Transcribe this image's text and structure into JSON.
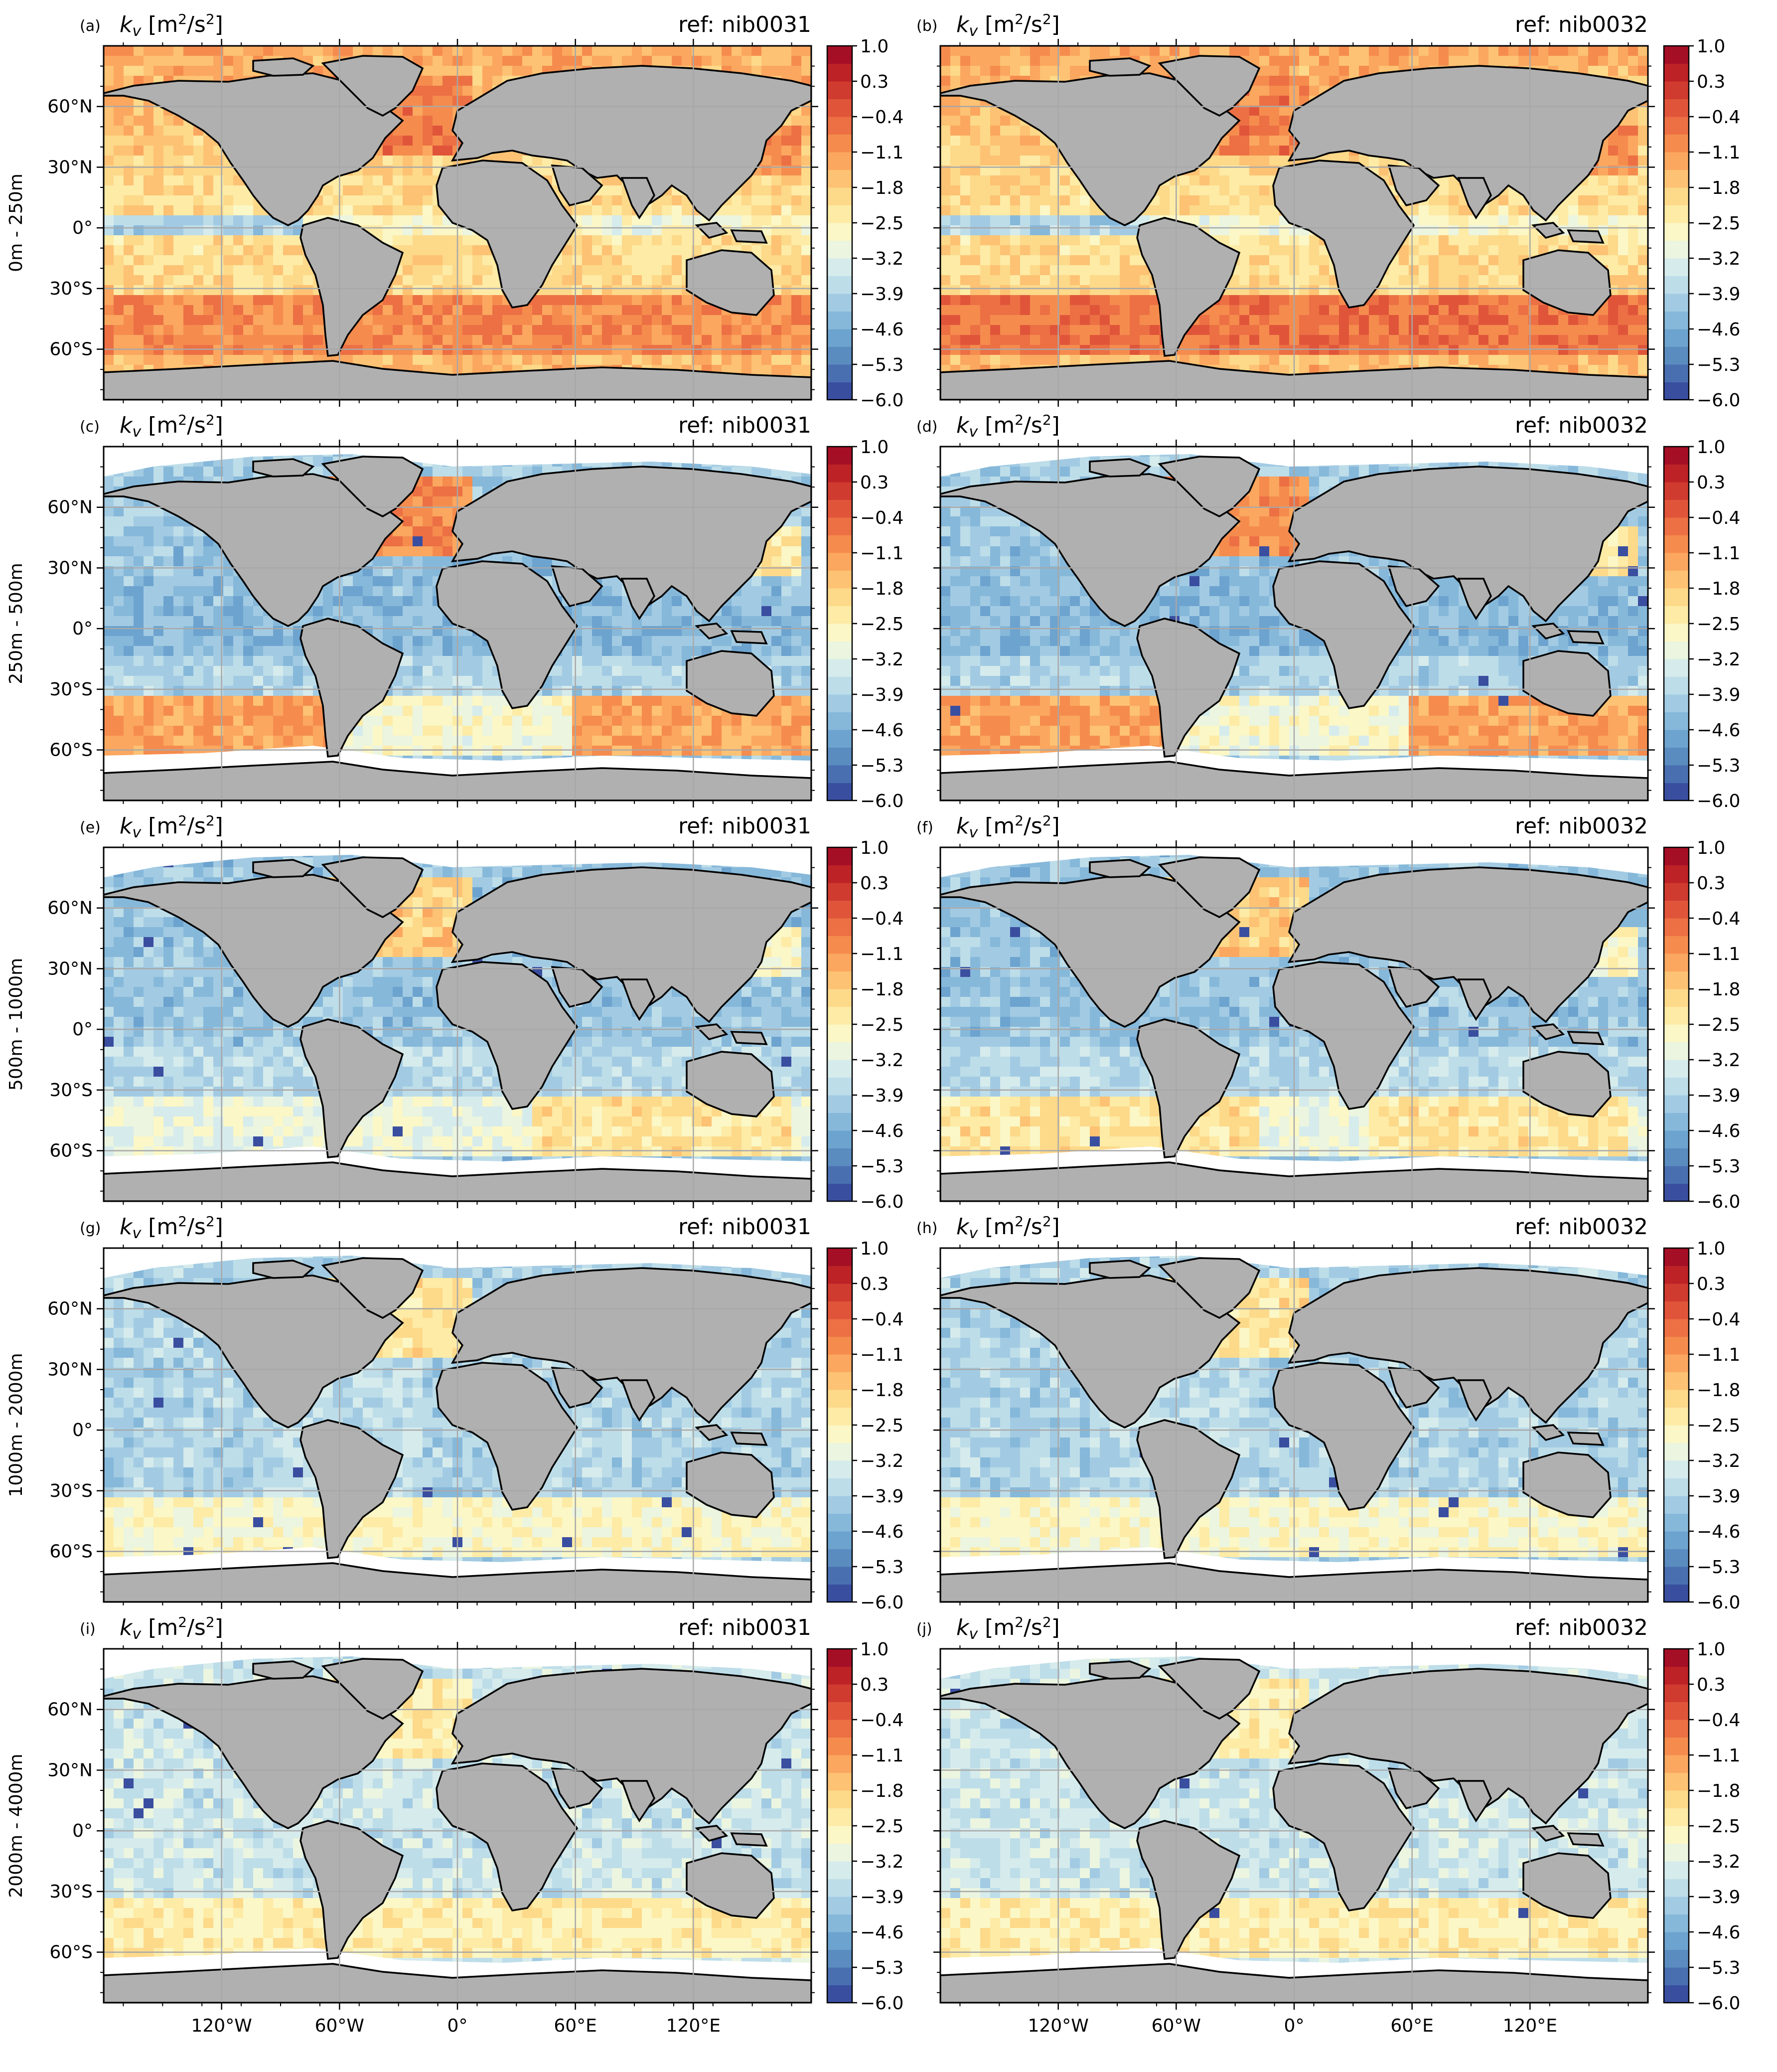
{
  "figure": {
    "panel_title": "k_v [m²/s²]",
    "colorbar": {
      "ticks": [
        "1.0",
        "0.3",
        "−0.4",
        "−1.1",
        "−1.8",
        "−2.5",
        "−3.2",
        "−3.9",
        "−4.6",
        "−5.3",
        "−6.0"
      ],
      "range": [
        -6.0,
        1.0
      ],
      "levels": 20,
      "colors": [
        "#3a4ea0",
        "#4a6fb0",
        "#5b8cc0",
        "#6da3cf",
        "#86b8da",
        "#a2cbe3",
        "#bddde9",
        "#d6ebec",
        "#ebf5e0",
        "#fbf7c6",
        "#fdeba6",
        "#fdd98a",
        "#fdc273",
        "#fba75f",
        "#f58c4e",
        "#ec7044",
        "#e0553a",
        "#cf3b2f",
        "#bc2226",
        "#a50f26"
      ]
    },
    "rows": [
      {
        "depth_label": "0m - 250m",
        "panels": [
          {
            "letter": "(a)",
            "ref": "ref: nib0031"
          },
          {
            "letter": "(b)",
            "ref": "ref: nib0032"
          }
        ]
      },
      {
        "depth_label": "250m - 500m",
        "panels": [
          {
            "letter": "(c)",
            "ref": "ref: nib0031"
          },
          {
            "letter": "(d)",
            "ref": "ref: nib0032"
          }
        ]
      },
      {
        "depth_label": "500m - 1000m",
        "panels": [
          {
            "letter": "(e)",
            "ref": "ref: nib0031"
          },
          {
            "letter": "(f)",
            "ref": "ref: nib0032"
          }
        ]
      },
      {
        "depth_label": "1000m - 2000m",
        "panels": [
          {
            "letter": "(g)",
            "ref": "ref: nib0031"
          },
          {
            "letter": "(h)",
            "ref": "ref: nib0032"
          }
        ]
      },
      {
        "depth_label": "2000m - 4000m",
        "panels": [
          {
            "letter": "(i)",
            "ref": "ref: nib0031"
          },
          {
            "letter": "(j)",
            "ref": "ref: nib0032"
          }
        ]
      }
    ],
    "lat_ticks": [
      "60°N",
      "30°N",
      "0°",
      "30°S",
      "60°S"
    ],
    "lon_ticks": [
      "120°W",
      "60°W",
      "0°",
      "60°E",
      "120°E"
    ]
  },
  "chart_data": {
    "type": "heatmap",
    "description_type": "global ocean map grid, 5 depth bands x 2 references",
    "variable": "k_v",
    "units": "m²/s²",
    "colorbar_range": [
      -6.0,
      1.0
    ],
    "colorbar_ticks": [
      1.0,
      0.3,
      -0.4,
      -1.1,
      -1.8,
      -2.5,
      -3.2,
      -3.9,
      -4.6,
      -5.3,
      -6.0
    ],
    "x_axis": {
      "type": "longitude",
      "range": [
        -180,
        180
      ],
      "ticks": [
        "120°W",
        "60°W",
        "0°",
        "60°E",
        "120°E"
      ]
    },
    "y_axis": {
      "type": "latitude",
      "range": [
        -85,
        90
      ],
      "ticks": [
        "60°N",
        "30°N",
        "0°",
        "30°S",
        "60°S"
      ]
    },
    "grid": true,
    "panels": [
      {
        "id": "(a)",
        "depth": "0m - 250m",
        "ref": "nib0031"
      },
      {
        "id": "(b)",
        "depth": "0m - 250m",
        "ref": "nib0032"
      },
      {
        "id": "(c)",
        "depth": "250m - 500m",
        "ref": "nib0031"
      },
      {
        "id": "(d)",
        "depth": "250m - 500m",
        "ref": "nib0032"
      },
      {
        "id": "(e)",
        "depth": "500m - 1000m",
        "ref": "nib0031"
      },
      {
        "id": "(f)",
        "depth": "500m - 1000m",
        "ref": "nib0032"
      },
      {
        "id": "(g)",
        "depth": "1000m - 2000m",
        "ref": "nib0031"
      },
      {
        "id": "(h)",
        "depth": "1000m - 2000m",
        "ref": "nib0032"
      },
      {
        "id": "(i)",
        "depth": "2000m - 4000m",
        "ref": "nib0031"
      },
      {
        "id": "(j)",
        "depth": "2000m - 4000m",
        "ref": "nib0032"
      }
    ]
  }
}
